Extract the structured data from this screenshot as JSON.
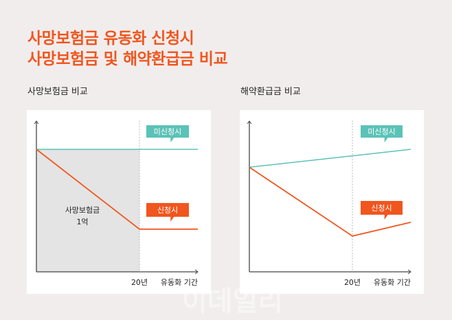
{
  "header": {
    "title_line1": "사망보험금 유동화 신청시",
    "title_line2": "사망보험금 및 해약환급금 비교"
  },
  "watermark": "이데일리",
  "colors": {
    "accent": "#f0561e",
    "teal": "#5bc2b8",
    "fill": "#e4e4e4",
    "background": "#f2eded"
  },
  "chart_data": [
    {
      "type": "line",
      "title": "사망보험금 비교",
      "xlabel": "유동화 기간",
      "x_ticks": [
        "20년"
      ],
      "series": [
        {
          "name": "미신청시",
          "trend": "flat"
        },
        {
          "name": "신청시",
          "trend": "decreasing until 20년, then flat"
        }
      ],
      "annotation": {
        "line1": "사망보험금",
        "line2": "1억"
      }
    },
    {
      "type": "line",
      "title": "해약환급금 비교",
      "xlabel": "유동화 기간",
      "x_ticks": [
        "20년"
      ],
      "series": [
        {
          "name": "미신청시",
          "trend": "slowly increasing"
        },
        {
          "name": "신청시",
          "trend": "decreasing until 20년, then increasing"
        }
      ]
    }
  ]
}
